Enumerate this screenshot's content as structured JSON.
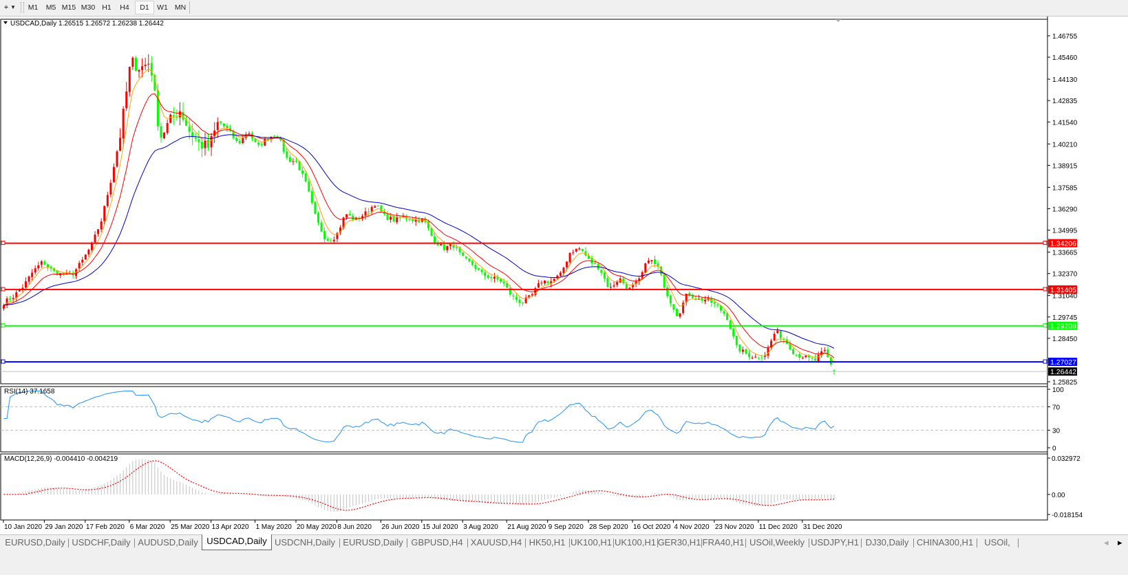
{
  "toolbar": {
    "tool_icon": "crosshair-cursor-icon",
    "timeframes": [
      "M1",
      "M5",
      "M15",
      "M30",
      "H1",
      "H4",
      "D1",
      "W1",
      "MN"
    ],
    "active_timeframe": "D1"
  },
  "chart": {
    "legend": "USDCAD,Daily  1.26515 1.26572 1.26238 1.26442",
    "rsi_label": "RSI(14) 37.1658",
    "macd_label": "MACD(12,26,9) -0.004410 -0.004219",
    "colors": {
      "bull": "#ff0000",
      "bear": "#00ff00",
      "ma_fast": "#ffa500",
      "ma_mid": "#ff0000",
      "ma_slow": "#0000cd",
      "rsi": "#1e90ff",
      "macd_hist": "#c0c0c0",
      "macd_signal": "#ff0000"
    }
  },
  "chart_data": {
    "type": "candlestick",
    "symbol": "USDCAD",
    "timeframe": "Daily",
    "first_date": "10 Jan 2020",
    "last_bar": {
      "open": 1.26515,
      "high": 1.26572,
      "low": 1.26238,
      "close": 1.26442
    },
    "approx_close_path": [
      1.306,
      1.31,
      1.316,
      1.325,
      1.331,
      1.325,
      1.323,
      1.323,
      1.331,
      1.341,
      1.356,
      1.381,
      1.41,
      1.452,
      1.448,
      1.452,
      1.406,
      1.416,
      1.423,
      1.41,
      1.402,
      1.4,
      1.416,
      1.41,
      1.402,
      1.41,
      1.4,
      1.406,
      1.408,
      1.393,
      1.391,
      1.377,
      1.356,
      1.344,
      1.346,
      1.36,
      1.356,
      1.36,
      1.366,
      1.358,
      1.356,
      1.358,
      1.356,
      1.356,
      1.344,
      1.339,
      1.341,
      1.333,
      1.329,
      1.323,
      1.321,
      1.319,
      1.31,
      1.306,
      1.31,
      1.319,
      1.319,
      1.323,
      1.337,
      1.339,
      1.331,
      1.327,
      1.314,
      1.321,
      1.314,
      1.319,
      1.333,
      1.327,
      1.31,
      1.298,
      1.312,
      1.308,
      1.308,
      1.304,
      1.298,
      1.279,
      1.275,
      1.273,
      1.275,
      1.289,
      1.283,
      1.275,
      1.273,
      1.271,
      1.277,
      1.2644
    ],
    "price_axis": {
      "ticks": [
        "1.46755",
        "1.45460",
        "1.44130",
        "1.42835",
        "1.41540",
        "1.40210",
        "1.38915",
        "1.37585",
        "1.36290",
        "1.34995",
        "1.33665",
        "1.32370",
        "1.31040",
        "1.29745",
        "1.28450",
        "1.25825"
      ],
      "range": [
        1.25825,
        1.46755
      ]
    },
    "horizontal_lines": [
      {
        "price": "1.34206",
        "color": "#ff0000"
      },
      {
        "price": "1.31405",
        "color": "#ff0000"
      },
      {
        "price": "1.29208",
        "color": "#00ff00"
      },
      {
        "price": "1.27027",
        "color": "#0000ff"
      }
    ],
    "current_price": "1.26442",
    "date_ticks": [
      "10 Jan 2020",
      "29 Jan 2020",
      "17 Feb 2020",
      "6 Mar 2020",
      "25 Mar 2020",
      "13 Apr 2020",
      "1 May 2020",
      "20 May 2020",
      "8 Jun 2020",
      "26 Jun 2020",
      "15 Jul 2020",
      "3 Aug 2020",
      "21 Aug 2020",
      "9 Sep 2020",
      "28 Sep 2020",
      "16 Oct 2020",
      "4 Nov 2020",
      "23 Nov 2020",
      "11 Dec 2020",
      "31 Dec 2020"
    ],
    "rsi": {
      "value": 37.1658,
      "ticks": [
        "100",
        "70",
        "30",
        "0"
      ],
      "levels": [
        70,
        30
      ]
    },
    "macd": {
      "main": -0.00441,
      "signal": -0.004219,
      "ticks": [
        "0.032972",
        "0.00",
        "-0.018154"
      ],
      "range": [
        -0.018154,
        0.032972
      ]
    }
  },
  "tabs": {
    "items": [
      "EURUSD,Daily",
      "USDCHF,Daily",
      "AUDUSD,Daily",
      "USDCAD,Daily",
      "USDCNH,Daily",
      "EURUSD,Daily",
      "GBPUSD,H4",
      "XAUUSD,H4",
      "HK50,H1",
      "UK100,H1",
      "UK100,H1",
      "GER30,H1",
      "FRA40,H1",
      "USOil,Weekly",
      "USDJPY,H1",
      "DJ30,Daily",
      "CHINA300,H1",
      "USOil,"
    ],
    "active": "USDCAD,Daily"
  }
}
